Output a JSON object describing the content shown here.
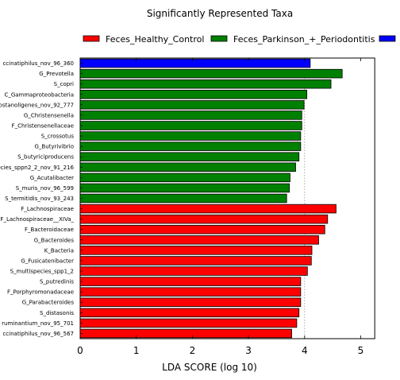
{
  "chart_data": {
    "type": "bar",
    "orientation": "horizontal",
    "title": "Significantly Represented Taxa",
    "xlabel": "LDA SCORE (log 10)",
    "ylabel": "",
    "xlim": [
      0,
      5.25
    ],
    "xticks": [
      0,
      1,
      2,
      3,
      4,
      5
    ],
    "grid": "dotted vertical line at 4",
    "legend_position": "top",
    "series": [
      {
        "name": "Feces_Healthy_Control",
        "color": "#ff0000"
      },
      {
        "name": "Feces_Parkinson_+_Periodontitis",
        "color": "#008000"
      },
      {
        "name": "",
        "color": "#0000ff"
      }
    ],
    "categories": [
      "ccinatiphilus_nov_96_360",
      "G_Prevotella",
      "S_copri",
      "C_Gammaproteobacteria",
      "ostanoligenes_nov_92_777",
      "G_Christensenella",
      "F_Christensenellaceae",
      "S_crossotus",
      "G_Butyrivibrio",
      "S_butyriciproducens",
      "ecies_sppn2_2_nov_91_216",
      "G_Acutalibacter",
      "S_muris_nov_96_599",
      "S_termitidis_nov_93_243",
      "F_Lachnospiraceae",
      "F_Lachnospiraceae__XIVa_",
      "F_Bacteroidaceae",
      "G_Bacteroides",
      "K_Bacteria",
      "G_Fusicatenibacter",
      "S_multispecies_spp1_2",
      "S_putredinis",
      "F_Porphyromonadaceae",
      "G_Parabacteroides",
      "S_distasonis",
      "ruminantium_nov_95_701",
      "ccinatiphilus_nov_96_567"
    ],
    "values": [
      4.1,
      4.67,
      4.47,
      4.04,
      3.99,
      3.95,
      3.95,
      3.93,
      3.93,
      3.9,
      3.84,
      3.74,
      3.73,
      3.68,
      4.56,
      4.41,
      4.36,
      4.25,
      4.13,
      4.12,
      4.05,
      3.93,
      3.93,
      3.93,
      3.9,
      3.86,
      3.77
    ],
    "groups": [
      2,
      1,
      1,
      1,
      1,
      1,
      1,
      1,
      1,
      1,
      1,
      1,
      1,
      1,
      0,
      0,
      0,
      0,
      0,
      0,
      0,
      0,
      0,
      0,
      0,
      0,
      0
    ]
  }
}
